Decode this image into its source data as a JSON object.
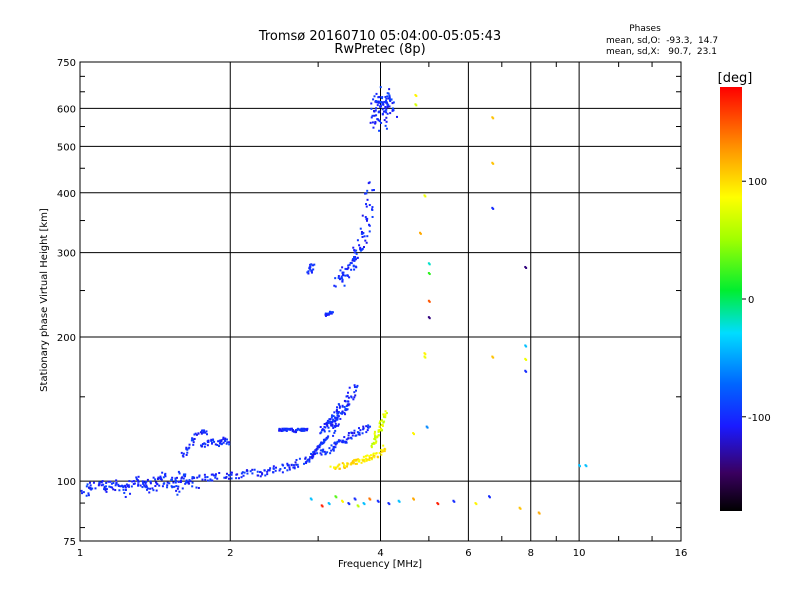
{
  "chart_data": {
    "type": "scatter",
    "title": "Tromsø 20160710 05:04:00-05:05:43",
    "subtitle": "RwPretec (8p)",
    "xlabel": "Frequency [MHz]",
    "ylabel": "Stationary phase Virtual Height [km]",
    "x_scale": "log",
    "y_scale": "log",
    "xlim": [
      1,
      16
    ],
    "ylim": [
      75,
      750
    ],
    "grid": true,
    "x_ticks": [
      1,
      2,
      4,
      6,
      8,
      10,
      16
    ],
    "x_tick_labels": [
      "1",
      "2",
      "4",
      "6",
      "8",
      "10",
      "16"
    ],
    "y_ticks": [
      75,
      100,
      200,
      300,
      400,
      500,
      600,
      750
    ],
    "y_tick_labels": [
      "75",
      "100",
      "200",
      "300",
      "400",
      "500",
      "600",
      "750"
    ],
    "colorbar": {
      "label": "[deg]",
      "range": [
        -180,
        180
      ],
      "ticks": [
        100,
        0,
        -100
      ],
      "tick_labels": [
        "100",
        "0",
        "-100"
      ]
    },
    "phase_box": {
      "title": "Phases",
      "line_o": "mean, sd,O:  -93.3,  14.7",
      "line_x": "mean, sd,X:   90.7,  23.1"
    },
    "traces": [
      {
        "x": [
          1.0,
          1.1,
          1.2,
          1.3,
          1.4,
          1.5,
          1.6,
          1.7,
          1.8,
          1.9,
          2.0,
          2.1,
          2.2,
          2.3,
          2.4,
          2.5,
          2.6,
          2.7,
          2.8,
          2.9,
          3.0,
          3.1,
          3.2,
          3.3,
          3.4,
          3.5,
          3.6,
          3.7,
          3.8
        ],
        "y": [
          97,
          98,
          99,
          99,
          100,
          100,
          101,
          101,
          102,
          102,
          103,
          103,
          104,
          104,
          105,
          106,
          107,
          108,
          110,
          112,
          114,
          116,
          118,
          120,
          122,
          124,
          126,
          128,
          130
        ],
        "phase": -100,
        "spread": 3
      },
      {
        "x": [
          1.0,
          1.05,
          1.1,
          1.15,
          1.2,
          1.25,
          1.3,
          1.35,
          1.4,
          1.45,
          1.5,
          1.55,
          1.6,
          1.65,
          1.7
        ],
        "y": [
          93,
          97,
          99,
          96,
          100,
          94,
          101,
          98,
          96,
          102,
          99,
          95,
          103,
          100,
          97
        ],
        "phase": -100,
        "spread": 4
      },
      {
        "x": [
          1.75,
          1.8,
          1.85,
          1.9,
          1.95,
          2.0
        ],
        "y": [
          118,
          120,
          121,
          119,
          122,
          120
        ],
        "phase": -100,
        "spread": 2
      },
      {
        "x": [
          1.6,
          1.65,
          1.7,
          1.75,
          1.8
        ],
        "y": [
          112,
          118,
          124,
          128,
          126
        ],
        "phase": -100,
        "spread": 2
      },
      {
        "x": [
          2.5,
          2.55,
          2.6,
          2.65,
          2.7,
          2.75,
          2.8,
          2.85
        ],
        "y": [
          128,
          128,
          128,
          128,
          127,
          128,
          128,
          128
        ],
        "phase": -100,
        "spread": 1
      },
      {
        "x": [
          2.9,
          2.95,
          3.0,
          3.05,
          3.1,
          3.15
        ],
        "y": [
          112,
          115,
          118,
          120,
          122,
          124
        ],
        "phase": -100,
        "spread": 1
      },
      {
        "x": [
          3.2,
          3.25,
          3.3,
          3.35,
          3.4,
          3.45,
          3.5,
          3.55
        ],
        "y": [
          126,
          130,
          134,
          138,
          142,
          147,
          152,
          160
        ],
        "phase": -100,
        "spread": 3
      },
      {
        "x": [
          3.05,
          3.1,
          3.15,
          3.2,
          3.25,
          3.3,
          3.35
        ],
        "y": [
          128,
          130,
          132,
          135,
          138,
          141,
          144
        ],
        "phase": -100,
        "spread": 3
      },
      {
        "x": [
          3.3,
          3.35,
          3.4,
          3.45,
          3.5,
          3.55,
          3.6,
          3.65,
          3.7,
          3.75,
          3.8,
          3.85
        ],
        "y": [
          260,
          266,
          272,
          278,
          285,
          292,
          300,
          312,
          330,
          350,
          380,
          430
        ],
        "phase": -100,
        "spread": 4
      },
      {
        "x": [
          2.88,
          2.9,
          2.92
        ],
        "y": [
          272,
          278,
          286
        ],
        "phase": -100,
        "spread": 2
      },
      {
        "x": [
          3.1,
          3.15,
          3.2
        ],
        "y": [
          222,
          224,
          226
        ],
        "phase": -100,
        "spread": 1
      },
      {
        "x": [
          3.9,
          3.95,
          4.0,
          4.05,
          4.1,
          4.15,
          4.2,
          3.95,
          4.05,
          4.0,
          4.1,
          3.9
        ],
        "y": [
          560,
          580,
          600,
          620,
          640,
          610,
          590,
          630,
          570,
          550,
          655,
          600
        ],
        "phase": -100,
        "spread": 6
      },
      {
        "x": [
          3.2,
          3.3,
          3.4,
          3.5,
          3.6,
          3.7,
          3.8,
          3.9,
          4.0,
          4.1
        ],
        "y": [
          106,
          107,
          108,
          109,
          110,
          111,
          112,
          113,
          115,
          118
        ],
        "phase": 95,
        "spread": 2
      },
      {
        "x": [
          3.85,
          3.9,
          3.95,
          4.0,
          4.05,
          4.1
        ],
        "y": [
          118,
          122,
          126,
          130,
          134,
          140
        ],
        "phase": 70,
        "spread": 2
      }
    ],
    "points": [
      {
        "x": 4.7,
        "y": 640,
        "phase": 90
      },
      {
        "x": 4.7,
        "y": 612,
        "phase": 70
      },
      {
        "x": 4.9,
        "y": 395,
        "phase": 80
      },
      {
        "x": 4.8,
        "y": 330,
        "phase": 120
      },
      {
        "x": 5.0,
        "y": 285,
        "phase": -20
      },
      {
        "x": 5.0,
        "y": 272,
        "phase": 20
      },
      {
        "x": 5.0,
        "y": 238,
        "phase": 150
      },
      {
        "x": 5.0,
        "y": 220,
        "phase": -140
      },
      {
        "x": 4.9,
        "y": 185,
        "phase": 90
      },
      {
        "x": 4.9,
        "y": 182,
        "phase": 80
      },
      {
        "x": 4.65,
        "y": 126,
        "phase": 90
      },
      {
        "x": 4.95,
        "y": 130,
        "phase": -60
      },
      {
        "x": 6.7,
        "y": 575,
        "phase": 110
      },
      {
        "x": 6.7,
        "y": 462,
        "phase": 110
      },
      {
        "x": 6.7,
        "y": 372,
        "phase": -100
      },
      {
        "x": 6.7,
        "y": 182,
        "phase": 110
      },
      {
        "x": 7.8,
        "y": 280,
        "phase": -140
      },
      {
        "x": 7.8,
        "y": 192,
        "phase": -40
      },
      {
        "x": 7.8,
        "y": 180,
        "phase": 80
      },
      {
        "x": 7.8,
        "y": 170,
        "phase": -100
      },
      {
        "x": 10.0,
        "y": 108,
        "phase": -40
      },
      {
        "x": 10.3,
        "y": 108,
        "phase": -40
      },
      {
        "x": 2.9,
        "y": 92,
        "phase": -40
      },
      {
        "x": 3.05,
        "y": 89,
        "phase": 170
      },
      {
        "x": 3.15,
        "y": 90,
        "phase": -40
      },
      {
        "x": 3.25,
        "y": 93,
        "phase": 30
      },
      {
        "x": 3.35,
        "y": 91,
        "phase": 90
      },
      {
        "x": 3.45,
        "y": 90,
        "phase": -100
      },
      {
        "x": 3.55,
        "y": 92,
        "phase": -100
      },
      {
        "x": 3.6,
        "y": 89,
        "phase": 60
      },
      {
        "x": 3.7,
        "y": 90,
        "phase": -40
      },
      {
        "x": 3.8,
        "y": 92,
        "phase": 140
      },
      {
        "x": 3.95,
        "y": 91,
        "phase": -100
      },
      {
        "x": 4.15,
        "y": 90,
        "phase": -100
      },
      {
        "x": 4.35,
        "y": 91,
        "phase": -40
      },
      {
        "x": 4.65,
        "y": 92,
        "phase": 120
      },
      {
        "x": 5.2,
        "y": 90,
        "phase": 170
      },
      {
        "x": 5.6,
        "y": 91,
        "phase": -100
      },
      {
        "x": 6.2,
        "y": 90,
        "phase": 90
      },
      {
        "x": 6.6,
        "y": 93,
        "phase": -100
      },
      {
        "x": 7.6,
        "y": 88,
        "phase": 110
      },
      {
        "x": 8.3,
        "y": 86,
        "phase": 120
      }
    ]
  }
}
